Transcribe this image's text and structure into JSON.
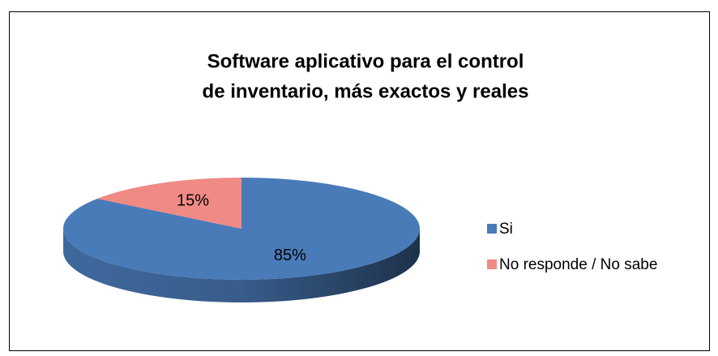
{
  "chart_data": {
    "type": "pie",
    "title": [
      "Software aplicativo para el control",
      "de inventario, más exactos y reales"
    ],
    "categories": [
      "Si",
      "No responde / No sabe"
    ],
    "values": [
      85,
      15
    ],
    "value_labels": [
      "85%",
      "15%"
    ],
    "colors": [
      "#4a7bb9",
      "#f08a84"
    ],
    "legend": "right"
  }
}
